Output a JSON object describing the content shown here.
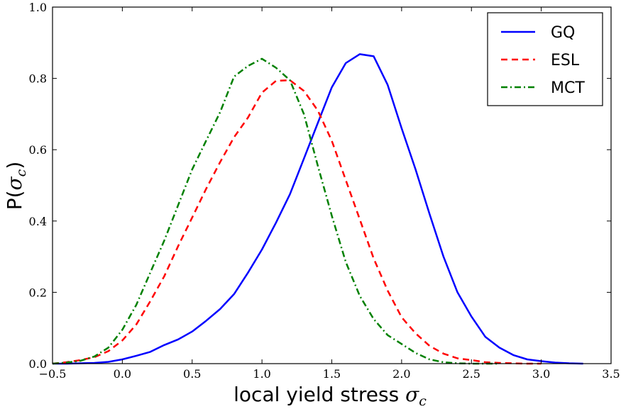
{
  "chart_data": {
    "type": "line",
    "title": "",
    "xlabel_text": "local yield stress ",
    "xlabel_symbol": "σ",
    "xlabel_subscript": "c",
    "ylabel_prefix": "P(",
    "ylabel_symbol": "σ",
    "ylabel_subscript": "c",
    "ylabel_suffix": ")",
    "xlim": [
      -0.5,
      3.5
    ],
    "ylim": [
      0.0,
      1.0
    ],
    "xticks": [
      -0.5,
      0.0,
      0.5,
      1.0,
      1.5,
      2.0,
      2.5,
      3.0,
      3.5
    ],
    "xtick_labels": [
      "−0.5",
      "0.0",
      "0.5",
      "1.0",
      "1.5",
      "2.0",
      "2.5",
      "3.0",
      "3.5"
    ],
    "yticks": [
      0.0,
      0.2,
      0.4,
      0.6,
      0.8,
      1.0
    ],
    "ytick_labels": [
      "0.0",
      "0.2",
      "0.4",
      "0.6",
      "0.8",
      "1.0"
    ],
    "grid": false,
    "legend_position": "top-right",
    "series": [
      {
        "name": "GQ",
        "color": "#0000ff",
        "style": "solid",
        "x": [
          -0.5,
          -0.4,
          -0.3,
          -0.2,
          -0.1,
          0.0,
          0.1,
          0.2,
          0.3,
          0.4,
          0.5,
          0.6,
          0.7,
          0.8,
          0.9,
          1.0,
          1.1,
          1.2,
          1.3,
          1.4,
          1.5,
          1.6,
          1.7,
          1.8,
          1.9,
          2.0,
          2.1,
          2.2,
          2.3,
          2.4,
          2.5,
          2.6,
          2.7,
          2.8,
          2.9,
          3.0,
          3.1,
          3.2,
          3.3
        ],
        "y": [
          0.0,
          0.0,
          0.001,
          0.002,
          0.005,
          0.012,
          0.022,
          0.033,
          0.052,
          0.068,
          0.09,
          0.12,
          0.153,
          0.195,
          0.255,
          0.32,
          0.395,
          0.475,
          0.575,
          0.675,
          0.775,
          0.843,
          0.868,
          0.862,
          0.782,
          0.66,
          0.545,
          0.42,
          0.3,
          0.2,
          0.132,
          0.075,
          0.045,
          0.024,
          0.012,
          0.007,
          0.003,
          0.001,
          0.0
        ]
      },
      {
        "name": "ESL",
        "color": "#ff0000",
        "style": "dashed",
        "x": [
          -0.5,
          -0.4,
          -0.3,
          -0.2,
          -0.1,
          0.0,
          0.1,
          0.2,
          0.3,
          0.4,
          0.5,
          0.6,
          0.7,
          0.8,
          0.9,
          1.0,
          1.1,
          1.2,
          1.3,
          1.4,
          1.5,
          1.6,
          1.7,
          1.8,
          1.9,
          2.0,
          2.1,
          2.2,
          2.3,
          2.4,
          2.5,
          2.6,
          2.7,
          2.8,
          2.9,
          3.0
        ],
        "y": [
          0.0,
          0.004,
          0.01,
          0.018,
          0.035,
          0.065,
          0.11,
          0.175,
          0.245,
          0.33,
          0.41,
          0.49,
          0.565,
          0.635,
          0.69,
          0.76,
          0.793,
          0.795,
          0.765,
          0.71,
          0.625,
          0.515,
          0.405,
          0.295,
          0.205,
          0.13,
          0.085,
          0.05,
          0.028,
          0.015,
          0.01,
          0.004,
          0.002,
          0.001,
          0.0,
          0.0
        ]
      },
      {
        "name": "MCT",
        "color": "#008000",
        "style": "dashdot",
        "x": [
          -0.5,
          -0.4,
          -0.3,
          -0.2,
          -0.1,
          0.0,
          0.1,
          0.2,
          0.3,
          0.4,
          0.5,
          0.6,
          0.7,
          0.8,
          0.9,
          1.0,
          1.1,
          1.2,
          1.3,
          1.4,
          1.5,
          1.6,
          1.7,
          1.8,
          1.9,
          2.0,
          2.1,
          2.2,
          2.3,
          2.4,
          2.5,
          2.6,
          2.7
        ],
        "y": [
          0.0,
          0.003,
          0.008,
          0.02,
          0.045,
          0.095,
          0.165,
          0.255,
          0.345,
          0.445,
          0.545,
          0.625,
          0.705,
          0.805,
          0.835,
          0.855,
          0.83,
          0.795,
          0.7,
          0.555,
          0.415,
          0.285,
          0.19,
          0.125,
          0.08,
          0.055,
          0.03,
          0.012,
          0.004,
          0.001,
          0.0,
          0.0,
          0.0
        ]
      }
    ]
  }
}
